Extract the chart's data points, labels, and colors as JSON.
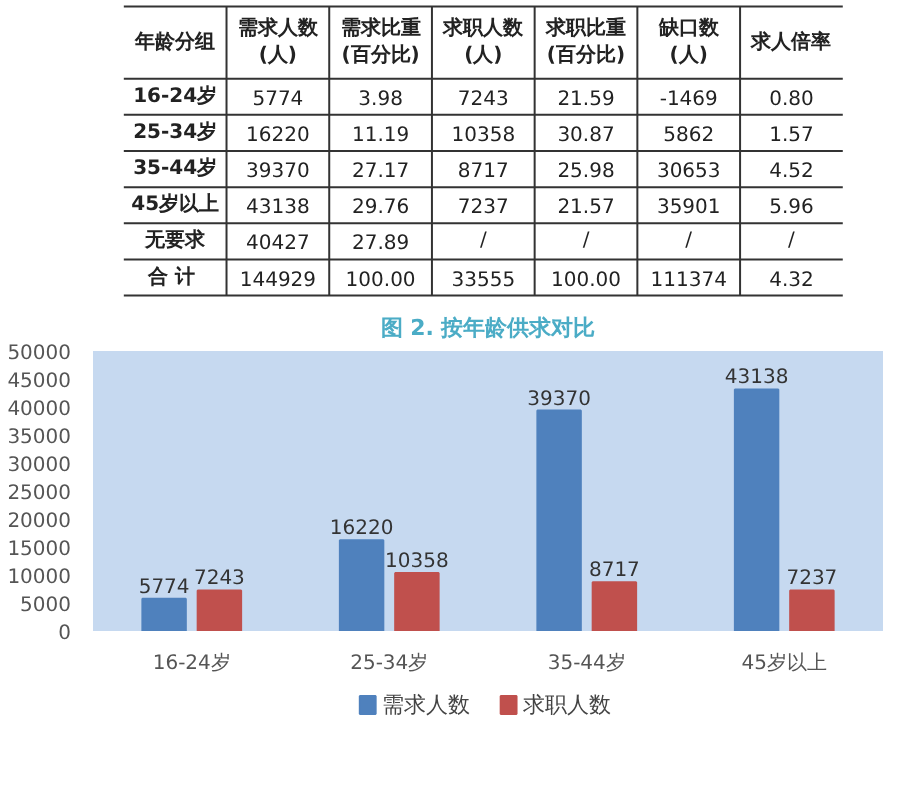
{
  "chart_data": [
    {
      "type": "other",
      "annotations": [
        "年龄分组",
        "需求人数\n(人)",
        "需求比重\n(百分比)",
        "求职人数\n(人)",
        "求职比重\n(百分比)",
        "缺口数\n(人)",
        "求人倍率",
        "16-24岁",
        "5774",
        "3.98",
        "7243",
        "21.59",
        "-1469",
        "0.80",
        "25-34岁",
        "16220",
        "11.19",
        "10358",
        "30.87",
        "5862",
        "1.57",
        "35-44岁",
        "39370",
        "27.17",
        "8717",
        "25.98",
        "30653",
        "4.52",
        "45岁以上",
        "43138",
        "29.76",
        "7237",
        "21.57",
        "35901",
        "5.96",
        "无要求",
        "40427",
        "27.89",
        "/",
        "/",
        "/",
        "/",
        "合  计",
        "144929",
        "100.00",
        "33555",
        "100.00",
        "111374",
        "4.32"
      ]
    },
    {
      "type": "bar",
      "title": "图 2. 按年龄供求对比",
      "categories": [
        "16-24岁",
        "25-34岁",
        "35-44岁",
        "45岁以上"
      ],
      "series": [
        {
          "name": "需求人数",
          "color": "#4f81bd",
          "values": [
            5774,
            16220,
            39370,
            43138
          ]
        },
        {
          "name": "求职人数",
          "color": "#c0504d",
          "values": [
            7243,
            10358,
            8717,
            7237
          ]
        }
      ],
      "ylim": [
        0,
        50000
      ],
      "yticks": [
        0,
        5000,
        10000,
        15000,
        20000,
        25000,
        30000,
        35000,
        40000,
        45000,
        50000
      ],
      "data_labels": true,
      "legend": "bottom",
      "grid": false
    }
  ]
}
